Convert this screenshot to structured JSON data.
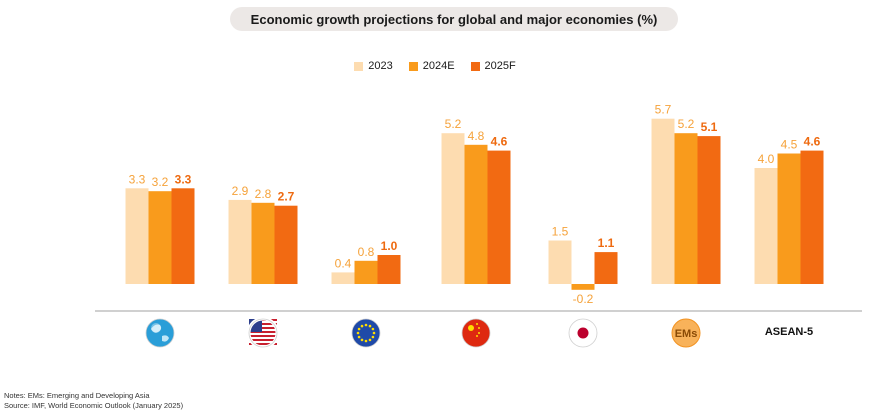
{
  "title": "Economic growth projections for global and major economies (%)",
  "colors": {
    "s2023": "#fddcb0",
    "s2024": "#f99b1c",
    "s2025": "#f26a12",
    "label": "#f5a23a",
    "label_bold": "#ee6a10",
    "axis": "#a0a0a0"
  },
  "chart_data": {
    "type": "bar",
    "categories": [
      "Global",
      "US",
      "EU",
      "China",
      "Japan",
      "EMs",
      "ASEAN-5"
    ],
    "category_icons": [
      "globe-icon",
      "us-flag-icon",
      "eu-flag-icon",
      "china-flag-icon",
      "japan-flag-icon",
      "ems-badge-icon",
      null
    ],
    "series": [
      {
        "name": "2023",
        "values": [
          3.3,
          2.9,
          0.4,
          5.2,
          1.5,
          5.7,
          4.0
        ]
      },
      {
        "name": "2024E",
        "values": [
          3.2,
          2.8,
          0.8,
          4.8,
          -0.2,
          5.2,
          4.5
        ]
      },
      {
        "name": "2025F",
        "values": [
          3.3,
          2.7,
          1.0,
          4.6,
          1.1,
          5.1,
          4.6
        ]
      }
    ],
    "data_labels": [
      [
        "3.3",
        "2.9",
        "0.4",
        "5.2",
        "1.5",
        "5.7",
        "4.0"
      ],
      [
        "3.2",
        "2.8",
        "0.8",
        "4.8",
        "-0.2",
        "5.2",
        "4.5"
      ],
      [
        "3.3",
        "2.7",
        "1.0",
        "4.6",
        "1.1",
        "5.1",
        "4.6"
      ]
    ],
    "legend_position": "top-center",
    "grid": false
  },
  "icon_text": {
    "ems": "EMs",
    "asean": "ASEAN-5"
  },
  "notes": [
    "Notes: EMs: Emerging and Developing Asia",
    "Source: IMF, World Economic Outlook (January 2025)"
  ]
}
